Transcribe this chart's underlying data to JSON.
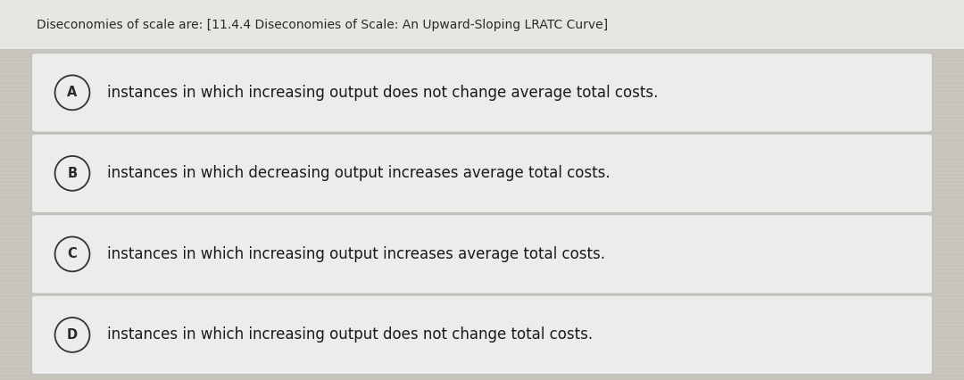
{
  "title": "Diseconomies of scale are: [11.4.4 Diseconomies of Scale: An Upward-Sloping LRATC Curve]",
  "title_fontsize": 10.0,
  "title_color": "#2a2a2a",
  "options": [
    {
      "label": "A",
      "text": "instances in which increasing output does not change average total costs."
    },
    {
      "label": "B",
      "text": "instances in which decreasing output increases average total costs."
    },
    {
      "label": "C",
      "text": "instances in which increasing output increases average total costs."
    },
    {
      "label": "D",
      "text": "instances in which increasing output does not change total costs."
    }
  ],
  "option_fontsize": 12.0,
  "option_text_color": "#1a1a1a",
  "label_fontsize": 10.5,
  "label_color": "#2a2a2a",
  "circle_edgecolor": "#333333",
  "circle_linewidth": 1.3,
  "box_facecolor": "#ececea",
  "box_edgecolor": "#bbbbbb",
  "divider_color": "#c0bfbc",
  "background_color_top": "#f0eeea",
  "background_color": "#cac7c1",
  "stripe_color": "#c4c1bb",
  "fig_width": 10.8,
  "fig_height": 4.26
}
